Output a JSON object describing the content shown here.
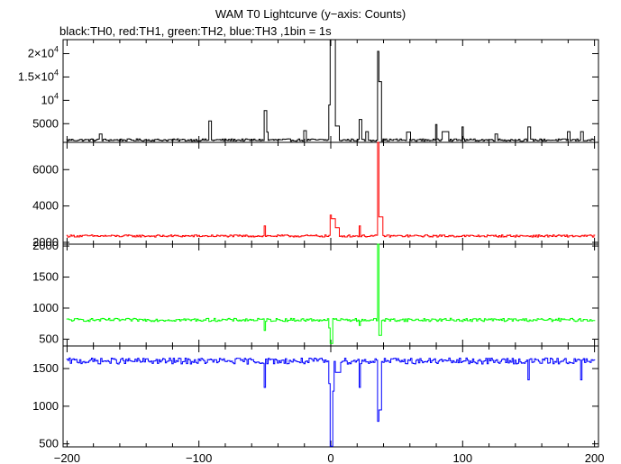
{
  "title": "WAM T0 Lightcurve (y−axis: Counts)",
  "subtitle": "black:TH0, red:TH1, green:TH2, blue:TH3 ,1bin = 1s",
  "chart_data": [
    {
      "type": "line",
      "name": "TH0",
      "color": "#000000",
      "ylim": [
        1000,
        23000
      ],
      "yticks": [
        5000,
        10000,
        15000,
        20000
      ],
      "ytick_labels": [
        {
          "base": "5000"
        },
        {
          "base": "10",
          "sup": "4"
        },
        {
          "base": "1.5×10",
          "sup": "4"
        },
        {
          "base": "2×10",
          "sup": "4"
        }
      ],
      "baseline": 1500,
      "noise": 250,
      "features": [
        {
          "x": -175,
          "w": 2,
          "y": 2800
        },
        {
          "x": -92,
          "w": 2,
          "y": 5600
        },
        {
          "x": -50,
          "w": 2,
          "y": 7800
        },
        {
          "x": -48,
          "w": 1,
          "y": 3200
        },
        {
          "x": -20,
          "w": 2,
          "y": 3500
        },
        {
          "x": -1,
          "w": 1,
          "y": 9000
        },
        {
          "x": 0,
          "w": 4,
          "y": 23000
        },
        {
          "x": 4,
          "w": 3,
          "y": 4500
        },
        {
          "x": 22,
          "w": 2,
          "y": 5900
        },
        {
          "x": 27,
          "w": 2,
          "y": 3300
        },
        {
          "x": 36,
          "w": 1,
          "y": 20500
        },
        {
          "x": 37,
          "w": 2,
          "y": 14000
        },
        {
          "x": 58,
          "w": 3,
          "y": 3200
        },
        {
          "x": 80,
          "w": 1,
          "y": 4800
        },
        {
          "x": 85,
          "w": 5,
          "y": 3300
        },
        {
          "x": 100,
          "w": 1,
          "y": 4300
        },
        {
          "x": 125,
          "w": 2,
          "y": 2800
        },
        {
          "x": 150,
          "w": 2,
          "y": 4300
        },
        {
          "x": 180,
          "w": 2,
          "y": 3300
        },
        {
          "x": 190,
          "w": 2,
          "y": 3300
        }
      ]
    },
    {
      "type": "line",
      "name": "TH1",
      "color": "#ff0000",
      "ylim": [
        1900,
        7500
      ],
      "yticks": [
        2000,
        4000,
        6000
      ],
      "ytick_labels": [
        {
          "base": "2000"
        },
        {
          "base": "4000"
        },
        {
          "base": "6000"
        }
      ],
      "baseline": 2350,
      "noise": 60,
      "features": [
        {
          "x": -50,
          "w": 1,
          "y": 2900
        },
        {
          "x": 0,
          "w": 1,
          "y": 3500
        },
        {
          "x": 1,
          "w": 3,
          "y": 3300
        },
        {
          "x": 4,
          "w": 3,
          "y": 2800
        },
        {
          "x": 22,
          "w": 1,
          "y": 2900
        },
        {
          "x": 36,
          "w": 1,
          "y": 7500
        },
        {
          "x": 37,
          "w": 3,
          "y": 3400
        }
      ]
    },
    {
      "type": "line",
      "name": "TH2",
      "color": "#00ff00",
      "ylim": [
        390,
        2030
      ],
      "yticks": [
        500,
        1000,
        1500,
        2000
      ],
      "ytick_labels": [
        {
          "base": "500"
        },
        {
          "base": "1000"
        },
        {
          "base": "1500"
        },
        {
          "base": "2000"
        }
      ],
      "baseline": 810,
      "noise": 25,
      "features": [
        {
          "x": -50,
          "w": 1,
          "y": 640
        },
        {
          "x": -1,
          "w": 1,
          "y": 680
        },
        {
          "x": 0,
          "w": 2,
          "y": 430
        },
        {
          "x": 22,
          "w": 1,
          "y": 720
        },
        {
          "x": 36,
          "w": 1,
          "y": 2030
        },
        {
          "x": 37,
          "w": 2,
          "y": 560
        }
      ]
    },
    {
      "type": "line",
      "name": "TH3",
      "color": "#0000ff",
      "ylim": [
        460,
        1800
      ],
      "yticks": [
        500,
        1000,
        1500
      ],
      "ytick_labels": [
        {
          "base": "500"
        },
        {
          "base": "1000"
        },
        {
          "base": "1500"
        }
      ],
      "baseline": 1600,
      "noise": 40,
      "features": [
        {
          "x": -50,
          "w": 1,
          "y": 1250
        },
        {
          "x": -1,
          "w": 1,
          "y": 1300
        },
        {
          "x": 0,
          "w": 2,
          "y": 470
        },
        {
          "x": 2,
          "w": 1,
          "y": 1200
        },
        {
          "x": 4,
          "w": 4,
          "y": 1450
        },
        {
          "x": 22,
          "w": 1,
          "y": 1250
        },
        {
          "x": 36,
          "w": 1,
          "y": 800
        },
        {
          "x": 37,
          "w": 2,
          "y": 950
        },
        {
          "x": 150,
          "w": 1,
          "y": 1350
        },
        {
          "x": 190,
          "w": 1,
          "y": 1350
        }
      ]
    }
  ],
  "x_axis": {
    "xlim": [
      -203,
      203
    ],
    "ticks": [
      -200,
      -100,
      0,
      100,
      200
    ],
    "tick_labels": [
      "−200",
      "−100",
      "0",
      "100",
      "200"
    ],
    "bin_seconds": 1
  }
}
